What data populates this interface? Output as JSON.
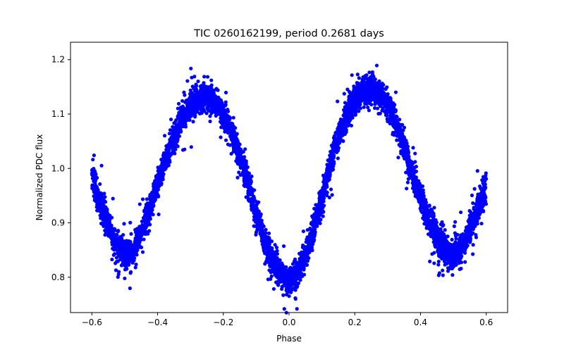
{
  "chart_data": {
    "type": "scatter",
    "title": "TIC 0260162199, period 0.2681 days",
    "xlabel": "Phase",
    "ylabel": "Normalized PDC flux",
    "xlim": [
      -0.665,
      0.665
    ],
    "ylim": [
      0.735,
      1.232
    ],
    "xticks": [
      -0.6,
      -0.4,
      -0.2,
      0.0,
      0.2,
      0.4,
      0.6
    ],
    "xtick_labels": [
      "−0.6",
      "−0.4",
      "−0.2",
      "0.0",
      "0.2",
      "0.4",
      "0.6"
    ],
    "yticks": [
      0.8,
      0.9,
      1.0,
      1.1,
      1.2
    ],
    "ytick_labels": [
      "0.8",
      "0.9",
      "1.0",
      "1.1",
      "1.2"
    ],
    "grid": false,
    "marker_color": "#0000ff",
    "series": [
      {
        "x": [
          -0.6,
          -0.575,
          -0.55,
          -0.525,
          -0.5,
          -0.475,
          -0.45,
          -0.425,
          -0.4,
          -0.375,
          -0.35,
          -0.325,
          -0.3,
          -0.275,
          -0.25,
          -0.225,
          -0.2,
          -0.175,
          -0.15,
          -0.125,
          -0.1,
          -0.075,
          -0.05,
          -0.025,
          0.0,
          0.025,
          0.05,
          0.075,
          0.1,
          0.125,
          0.15,
          0.175,
          0.2,
          0.225,
          0.25,
          0.275,
          0.3,
          0.325,
          0.35,
          0.375,
          0.4,
          0.425,
          0.45,
          0.475,
          0.5,
          0.525,
          0.55,
          0.575,
          0.6
        ],
        "y": [
          0.985,
          0.935,
          0.895,
          0.86,
          0.84,
          0.848,
          0.88,
          0.925,
          0.97,
          1.015,
          1.057,
          1.092,
          1.117,
          1.128,
          1.13,
          1.121,
          1.1,
          1.067,
          1.023,
          0.97,
          0.918,
          0.868,
          0.83,
          0.805,
          0.79,
          0.808,
          0.84,
          0.888,
          0.945,
          1.005,
          1.058,
          1.1,
          1.128,
          1.142,
          1.145,
          1.138,
          1.118,
          1.085,
          1.04,
          0.992,
          0.948,
          0.906,
          0.872,
          0.85,
          0.84,
          0.858,
          0.89,
          0.925,
          0.965
        ]
      }
    ]
  }
}
